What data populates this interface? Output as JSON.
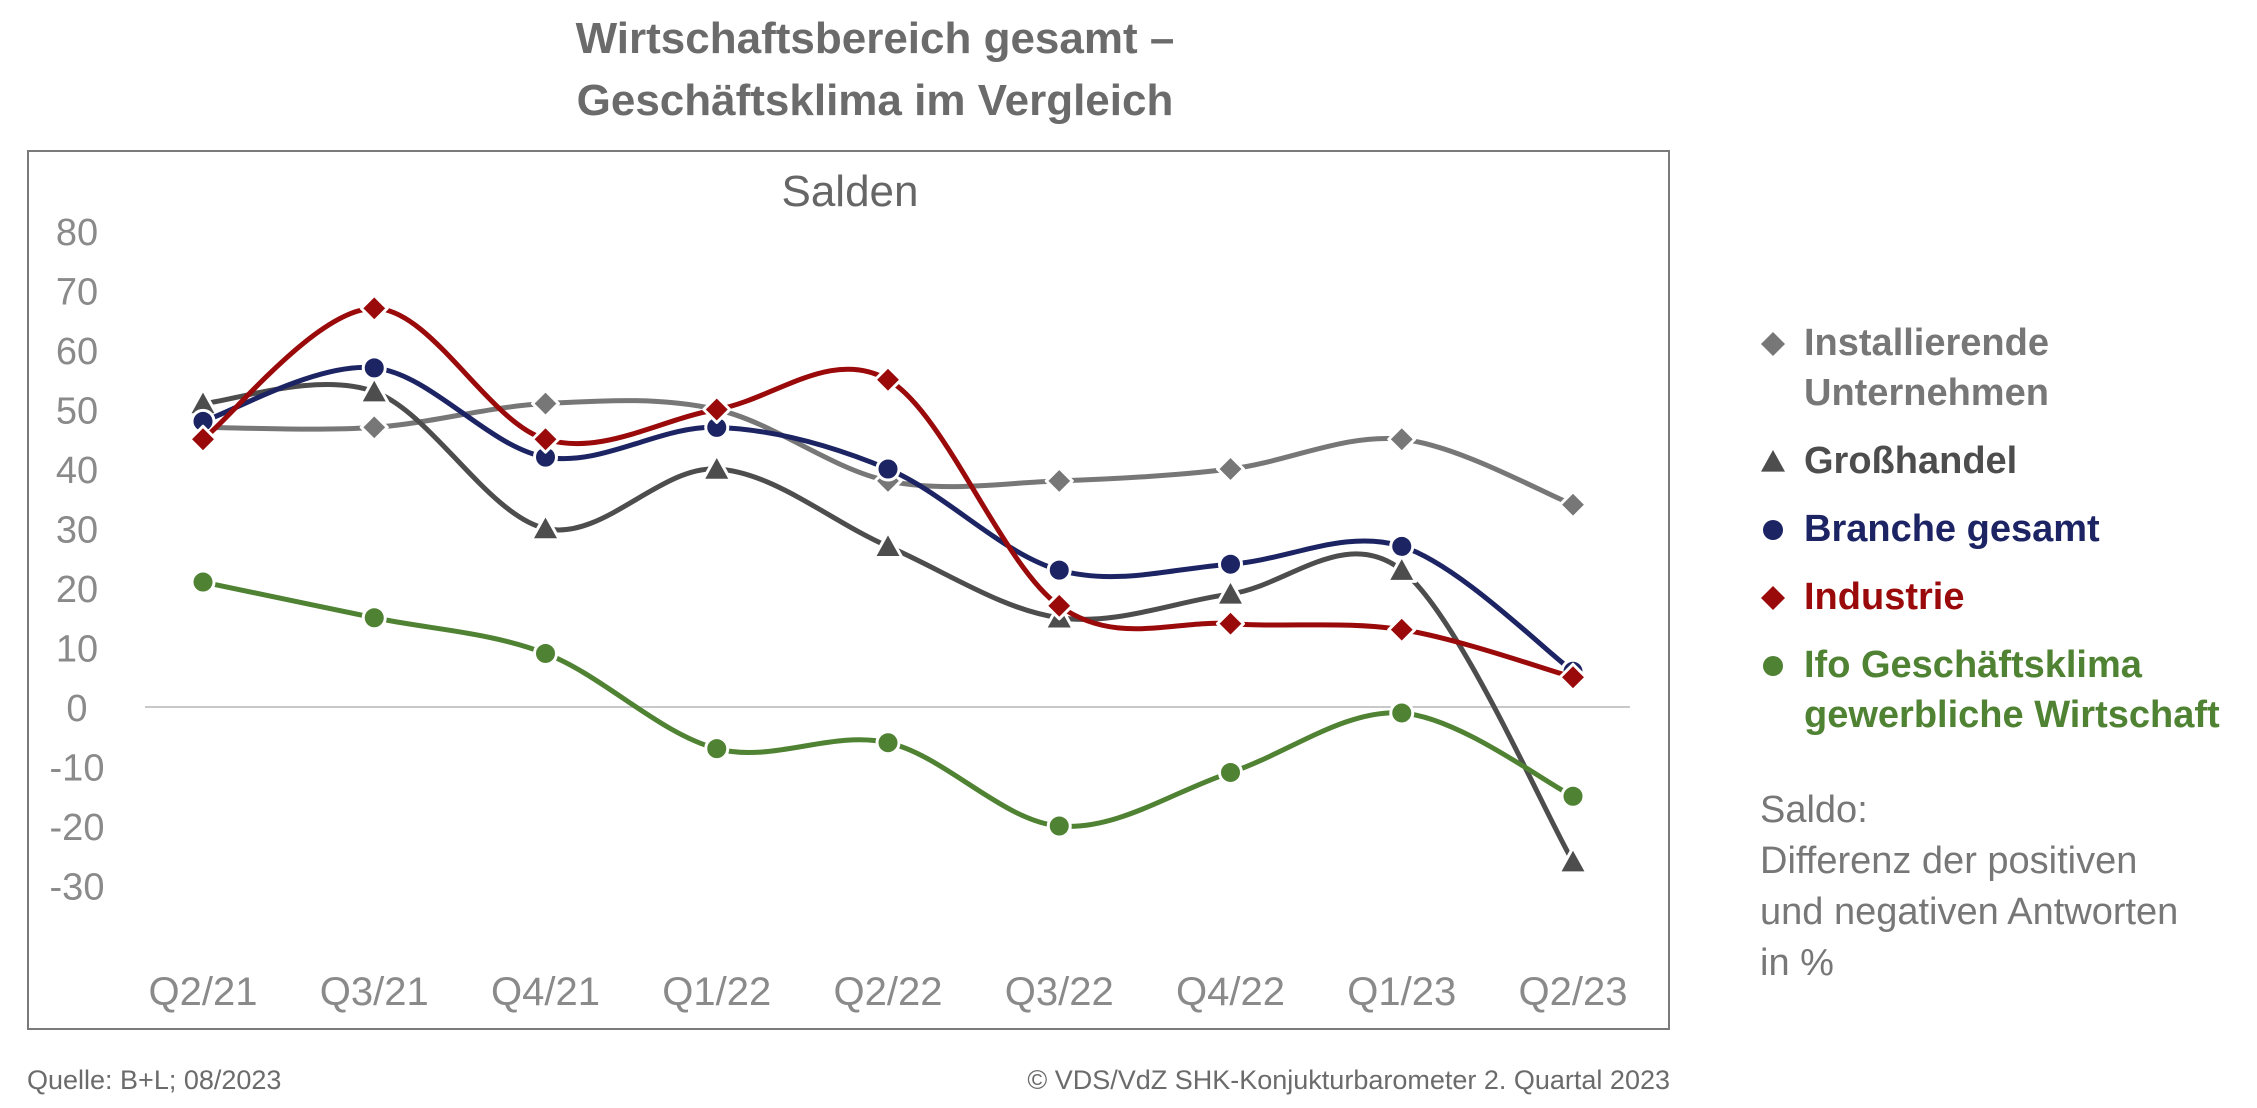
{
  "header": {
    "title_line1": "Wirtschaftsbereich gesamt –",
    "title_line2": "Geschäftsklima im Vergleich"
  },
  "note": {
    "line1": "Saldo:",
    "line2": "Differenz der positiven",
    "line3": "und negativen Antworten",
    "line4": "in %"
  },
  "footer": {
    "source": "Quelle: B+L; 08/2023",
    "copyright": "© VDS/VdZ SHK-Konjukturbarometer 2. Quartal 2023"
  },
  "chart_data": {
    "type": "line",
    "title": "Salden",
    "xlabel": "",
    "ylabel": "",
    "categories": [
      "Q2/21",
      "Q3/21",
      "Q4/21",
      "Q1/22",
      "Q2/22",
      "Q3/22",
      "Q4/22",
      "Q1/23",
      "Q2/23"
    ],
    "ylim": [
      -30,
      80
    ],
    "yticks": [
      80,
      70,
      60,
      50,
      40,
      30,
      20,
      10,
      0,
      -10,
      -20,
      -30
    ],
    "grid": false,
    "zero_line": true,
    "smooth": true,
    "legend_position": "right",
    "series": [
      {
        "name": "Installierende Unternehmen",
        "legend_lines": [
          "Installierende",
          "Unternehmen"
        ],
        "color": "#777777",
        "marker": "diamond",
        "values": [
          47,
          47,
          51,
          50,
          38,
          38,
          40,
          45,
          34
        ]
      },
      {
        "name": "Großhandel",
        "legend_lines": [
          "Großhandel"
        ],
        "color": "#4d4d4d",
        "marker": "triangle",
        "values": [
          51,
          53,
          30,
          40,
          27,
          15,
          19,
          23,
          -26
        ]
      },
      {
        "name": "Branche gesamt",
        "legend_lines": [
          "Branche gesamt"
        ],
        "color": "#1c2464",
        "marker": "circle",
        "values": [
          48,
          57,
          42,
          47,
          40,
          23,
          24,
          27,
          6
        ]
      },
      {
        "name": "Industrie",
        "legend_lines": [
          "Industrie"
        ],
        "color": "#9a0a0a",
        "marker": "diamond",
        "values": [
          45,
          67,
          45,
          50,
          55,
          17,
          14,
          13,
          5
        ]
      },
      {
        "name": "Ifo Geschäftsklima gewerbliche Wirtschaft",
        "legend_lines": [
          "Ifo Geschäftsklima",
          "gewerbliche Wirtschaft"
        ],
        "color": "#4f8232",
        "marker": "circle",
        "values": [
          21,
          15,
          9,
          -7,
          -6,
          -20,
          -11,
          -1,
          -15
        ]
      }
    ]
  }
}
